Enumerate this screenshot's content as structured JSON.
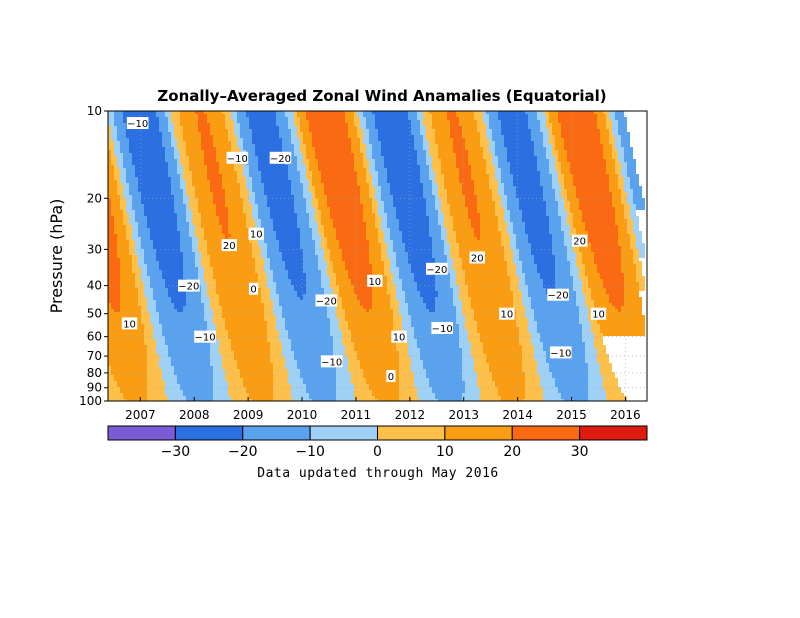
{
  "chart_data": {
    "type": "heatmap",
    "title": "Zonally–Averaged Zonal Wind Anamalies (Equatorial)",
    "ylabel": "Pressure (hPa)",
    "y_scale": "log",
    "y_reversed": true,
    "ylim": [
      100,
      10
    ],
    "xlim": [
      2006.4,
      2016.4
    ],
    "pressure_levels": [
      10,
      20,
      30,
      40,
      50,
      60,
      70,
      80,
      90,
      100
    ],
    "pressure_tick_labels": [
      "10",
      "20",
      "30",
      "40",
      "50",
      "60",
      "70",
      "80",
      "90",
      "100"
    ],
    "x_ticks": [
      2007,
      2008,
      2009,
      2010,
      2011,
      2012,
      2013,
      2014,
      2015,
      2016
    ],
    "x_tick_labels": [
      "2007",
      "2008",
      "2009",
      "2010",
      "2011",
      "2012",
      "2013",
      "2014",
      "2015",
      "2016"
    ],
    "grid": true,
    "colorbar": {
      "levels": [
        -40,
        -30,
        -20,
        -10,
        0,
        10,
        20,
        30,
        40
      ],
      "tick_labels": [
        "−30",
        "−20",
        "−10",
        "0",
        "10",
        "20",
        "30"
      ],
      "tick_values": [
        -30,
        -20,
        -10,
        0,
        10,
        20,
        30
      ],
      "colors": [
        "#7b5cd6",
        "#2c6fe0",
        "#5aa2ee",
        "#9fd0f5",
        "#fdc04a",
        "#fb9d13",
        "#fa6a12",
        "#de1b10"
      ]
    },
    "qbo_model": {
      "t_ref": 2009.85,
      "period_years": 2.33,
      "amplitude": 26,
      "descent_years_10_to_100": 1.15
    },
    "contour_labels": [
      {
        "text": "−10",
        "year": 2006.95,
        "p": 11
      },
      {
        "text": "−10",
        "year": 2008.8,
        "p": 14.5
      },
      {
        "text": "−20",
        "year": 2009.6,
        "p": 14.5
      },
      {
        "text": "−20",
        "year": 2007.9,
        "p": 40
      },
      {
        "text": "−10",
        "year": 2008.2,
        "p": 60
      },
      {
        "text": "20",
        "year": 2008.65,
        "p": 29
      },
      {
        "text": "10",
        "year": 2009.15,
        "p": 26.5
      },
      {
        "text": "0",
        "year": 2009.1,
        "p": 41
      },
      {
        "text": "10",
        "year": 2006.8,
        "p": 54
      },
      {
        "text": "−20",
        "year": 2010.45,
        "p": 45
      },
      {
        "text": "−10",
        "year": 2010.55,
        "p": 73
      },
      {
        "text": "10",
        "year": 2011.35,
        "p": 38.5
      },
      {
        "text": "10",
        "year": 2011.8,
        "p": 60
      },
      {
        "text": "0",
        "year": 2011.65,
        "p": 82
      },
      {
        "text": "−20",
        "year": 2012.5,
        "p": 35
      },
      {
        "text": "−10",
        "year": 2012.6,
        "p": 56
      },
      {
        "text": "20",
        "year": 2013.25,
        "p": 32
      },
      {
        "text": "10",
        "year": 2013.8,
        "p": 50
      },
      {
        "text": "−20",
        "year": 2014.75,
        "p": 43
      },
      {
        "text": "−10",
        "year": 2014.8,
        "p": 68
      },
      {
        "text": "20",
        "year": 2015.15,
        "p": 28
      },
      {
        "text": "10",
        "year": 2015.5,
        "p": 50
      }
    ]
  },
  "footer": {
    "note": "Data updated through May 2016"
  }
}
